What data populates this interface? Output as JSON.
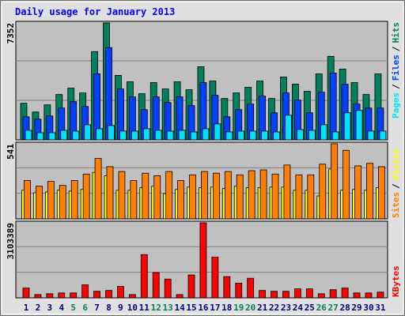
{
  "legend_separator": "/",
  "chart_data": [
    {
      "type": "bar",
      "title": "Daily usage for January 2013",
      "ylim": [
        0,
        7352
      ],
      "series": [
        {
          "name": "Pages",
          "color": "#00e0ff",
          "values": [
            600,
            450,
            450,
            600,
            550,
            950,
            700,
            900,
            550,
            550,
            700,
            600,
            550,
            600,
            500,
            700,
            1000,
            500,
            550,
            550,
            550,
            500,
            1550,
            650,
            600,
            950,
            500,
            1700,
            1850,
            550,
            550
          ]
        },
        {
          "name": "Files",
          "color": "#0040ff",
          "values": [
            1450,
            1300,
            1500,
            2000,
            2400,
            2100,
            4150,
            5800,
            3200,
            2700,
            1900,
            2700,
            2350,
            2700,
            2150,
            3600,
            2800,
            1450,
            1900,
            2250,
            2750,
            1700,
            2950,
            2500,
            1700,
            3000,
            4200,
            3500,
            2250,
            2000,
            2000
          ]
        },
        {
          "name": "Hits",
          "color": "#00805c",
          "values": [
            2300,
            1750,
            2200,
            2850,
            3250,
            2950,
            5550,
            7352,
            4050,
            3650,
            2900,
            3600,
            3200,
            3650,
            3150,
            4600,
            3700,
            2600,
            2950,
            3300,
            3700,
            2600,
            3950,
            3500,
            3050,
            4150,
            5250,
            4450,
            3600,
            2850,
            4150
          ]
        }
      ]
    },
    {
      "type": "bar",
      "ylim": [
        0,
        541
      ],
      "series": [
        {
          "name": "Sites",
          "color": "#ff8000",
          "values": [
            276,
            235,
            270,
            241,
            276,
            323,
            435,
            376,
            341,
            276,
            329,
            311,
            341,
            276,
            317,
            341,
            329,
            341,
            317,
            347,
            353,
            323,
            388,
            317,
            317,
            394,
            541,
            494,
            382,
            400,
            376
          ]
        },
        {
          "name": "Visits",
          "color": "#ffff00",
          "values": [
            206,
            188,
            194,
            206,
            200,
            212,
            335,
            311,
            206,
            206,
            224,
            235,
            182,
            212,
            229,
            224,
            229,
            218,
            235,
            224,
            224,
            229,
            229,
            206,
            206,
            165,
            359,
            206,
            212,
            206,
            224
          ]
        }
      ]
    },
    {
      "type": "bar",
      "ylim": [
        0,
        3103389
      ],
      "categories": [
        "1",
        "2",
        "3",
        "4",
        "5",
        "6",
        "7",
        "8",
        "9",
        "10",
        "11",
        "12",
        "13",
        "14",
        "15",
        "16",
        "17",
        "18",
        "19",
        "20",
        "21",
        "22",
        "23",
        "24",
        "25",
        "26",
        "27",
        "28",
        "29",
        "30",
        "31"
      ],
      "category_colors": [
        "#000080",
        "#000080",
        "#000080",
        "#000080",
        "#00805c",
        "#00805c",
        "#000080",
        "#000080",
        "#000080",
        "#000080",
        "#000080",
        "#00805c",
        "#00805c",
        "#000080",
        "#000080",
        "#000080",
        "#000080",
        "#000080",
        "#00805c",
        "#00805c",
        "#000080",
        "#000080",
        "#000080",
        "#000080",
        "#000080",
        "#00805c",
        "#00805c",
        "#000080",
        "#000080",
        "#000080",
        "#000080"
      ],
      "series": [
        {
          "name": "KBytes",
          "color": "#ff0000",
          "values": [
            404000,
            135000,
            169000,
            202000,
            202000,
            540000,
            270000,
            304000,
            472000,
            135000,
            1788000,
            1046000,
            776000,
            135000,
            945000,
            3103389,
            1687000,
            877000,
            607000,
            810000,
            304000,
            270000,
            270000,
            371000,
            371000,
            169000,
            337000,
            404000,
            202000,
            202000,
            236000
          ]
        }
      ]
    }
  ]
}
